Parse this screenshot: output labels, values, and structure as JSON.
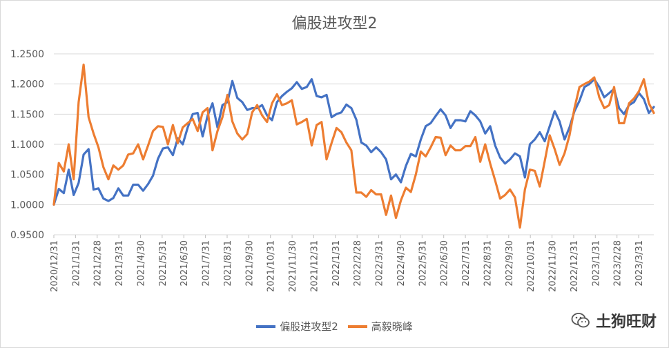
{
  "chart_data": {
    "type": "line",
    "title": "偏股进攻型2",
    "ylim": [
      0.95,
      1.25
    ],
    "y_ticks": [
      "1.2500",
      "1.2000",
      "1.1500",
      "1.1000",
      "1.0500",
      "1.0000",
      "0.9500"
    ],
    "x_ticks": [
      "2020/12/31",
      "2021/1/31",
      "2021/2/28",
      "2021/3/31",
      "2021/4/30",
      "2021/5/31",
      "2021/6/30",
      "2021/7/31",
      "2021/8/31",
      "2021/9/30",
      "2021/10/31",
      "2021/11/30",
      "2021/12/31",
      "2022/1/31",
      "2022/2/28",
      "2022/3/31",
      "2022/4/30",
      "2022/5/31",
      "2022/6/30",
      "2022/7/31",
      "2022/8/31",
      "2022/9/30",
      "2022/10/31",
      "2022/11/30",
      "2022/12/31",
      "2023/1/31",
      "2023/2/28",
      "2023/3/31"
    ],
    "grid": "horizontal",
    "legend_position": "bottom",
    "series": [
      {
        "name": "偏股进攻型2",
        "color": "#4472c4",
        "values": [
          1.0,
          1.026,
          1.019,
          1.058,
          1.016,
          1.036,
          1.083,
          1.092,
          1.025,
          1.027,
          1.01,
          1.006,
          1.011,
          1.027,
          1.015,
          1.015,
          1.033,
          1.033,
          1.023,
          1.034,
          1.048,
          1.076,
          1.093,
          1.095,
          1.082,
          1.11,
          1.1,
          1.128,
          1.15,
          1.152,
          1.113,
          1.147,
          1.168,
          1.128,
          1.165,
          1.17,
          1.205,
          1.177,
          1.17,
          1.157,
          1.16,
          1.16,
          1.165,
          1.148,
          1.14,
          1.17,
          1.18,
          1.187,
          1.193,
          1.203,
          1.192,
          1.195,
          1.208,
          1.18,
          1.178,
          1.182,
          1.145,
          1.15,
          1.153,
          1.166,
          1.16,
          1.141,
          1.103,
          1.098,
          1.087,
          1.095,
          1.087,
          1.075,
          1.042,
          1.05,
          1.037,
          1.064,
          1.084,
          1.08,
          1.108,
          1.13,
          1.135,
          1.147,
          1.158,
          1.148,
          1.127,
          1.14,
          1.14,
          1.138,
          1.155,
          1.148,
          1.138,
          1.118,
          1.13,
          1.098,
          1.078,
          1.068,
          1.075,
          1.085,
          1.08,
          1.045,
          1.1,
          1.108,
          1.12,
          1.105,
          1.13,
          1.155,
          1.138,
          1.108,
          1.128,
          1.155,
          1.172,
          1.195,
          1.2,
          1.208,
          1.195,
          1.178,
          1.185,
          1.192,
          1.16,
          1.15,
          1.165,
          1.17,
          1.185,
          1.175,
          1.152,
          1.162
        ]
      },
      {
        "name": "高毅晓峰",
        "color": "#ed7d31",
        "values": [
          1.0,
          1.069,
          1.055,
          1.1,
          1.042,
          1.17,
          1.232,
          1.145,
          1.118,
          1.095,
          1.062,
          1.042,
          1.065,
          1.058,
          1.065,
          1.083,
          1.085,
          1.1,
          1.075,
          1.098,
          1.122,
          1.13,
          1.129,
          1.1,
          1.132,
          1.102,
          1.128,
          1.135,
          1.142,
          1.122,
          1.153,
          1.16,
          1.09,
          1.122,
          1.145,
          1.182,
          1.138,
          1.118,
          1.108,
          1.117,
          1.153,
          1.165,
          1.148,
          1.137,
          1.168,
          1.183,
          1.165,
          1.168,
          1.173,
          1.133,
          1.137,
          1.142,
          1.098,
          1.132,
          1.137,
          1.075,
          1.102,
          1.127,
          1.12,
          1.103,
          1.09,
          1.02,
          1.02,
          1.013,
          1.024,
          1.017,
          1.017,
          0.983,
          1.015,
          0.978,
          1.007,
          1.028,
          1.021,
          1.05,
          1.088,
          1.08,
          1.095,
          1.112,
          1.111,
          1.082,
          1.098,
          1.09,
          1.09,
          1.097,
          1.097,
          1.112,
          1.071,
          1.1,
          1.068,
          1.04,
          1.01,
          1.016,
          1.025,
          1.012,
          0.962,
          1.025,
          1.058,
          1.056,
          1.03,
          1.072,
          1.115,
          1.092,
          1.066,
          1.085,
          1.115,
          1.16,
          1.195,
          1.2,
          1.204,
          1.211,
          1.178,
          1.16,
          1.165,
          1.195,
          1.135,
          1.135,
          1.168,
          1.176,
          1.188,
          1.208,
          1.168,
          1.152
        ]
      }
    ]
  },
  "legend": {
    "series1": "偏股进攻型2",
    "series2": "高毅晓峰"
  },
  "watermark": {
    "text": "土狗旺财",
    "icon": "wechat-icon"
  }
}
